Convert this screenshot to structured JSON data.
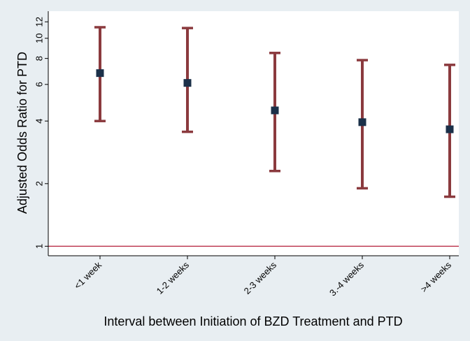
{
  "chart_data": {
    "type": "errorbar",
    "title": "",
    "xlabel": "Interval between Initiation of BZD Treatment and PTD",
    "ylabel": "Adjusted Odds Ratio for PTD",
    "yscale": "log",
    "ylim": [
      0.9,
      13.5
    ],
    "yticks": [
      1,
      2,
      4,
      6,
      8,
      10,
      12
    ],
    "reference_line": 1,
    "categories": [
      "<1 week",
      "1-2 weeks",
      "2-3 weeks",
      "3.-4 weeks",
      ">4 weeks"
    ],
    "estimates": [
      6.8,
      6.1,
      4.5,
      3.95,
      3.65
    ],
    "ci_lower": [
      4.0,
      3.55,
      2.3,
      1.9,
      1.73
    ],
    "ci_upper": [
      11.3,
      11.2,
      8.5,
      7.85,
      7.45
    ],
    "colors": {
      "background": "#e8eef2",
      "plot_background": "#ffffff",
      "error_bar": "#8b3a3e",
      "marker": "#1b3049",
      "reference_line": "#b5203a",
      "axis": "#000000"
    }
  }
}
